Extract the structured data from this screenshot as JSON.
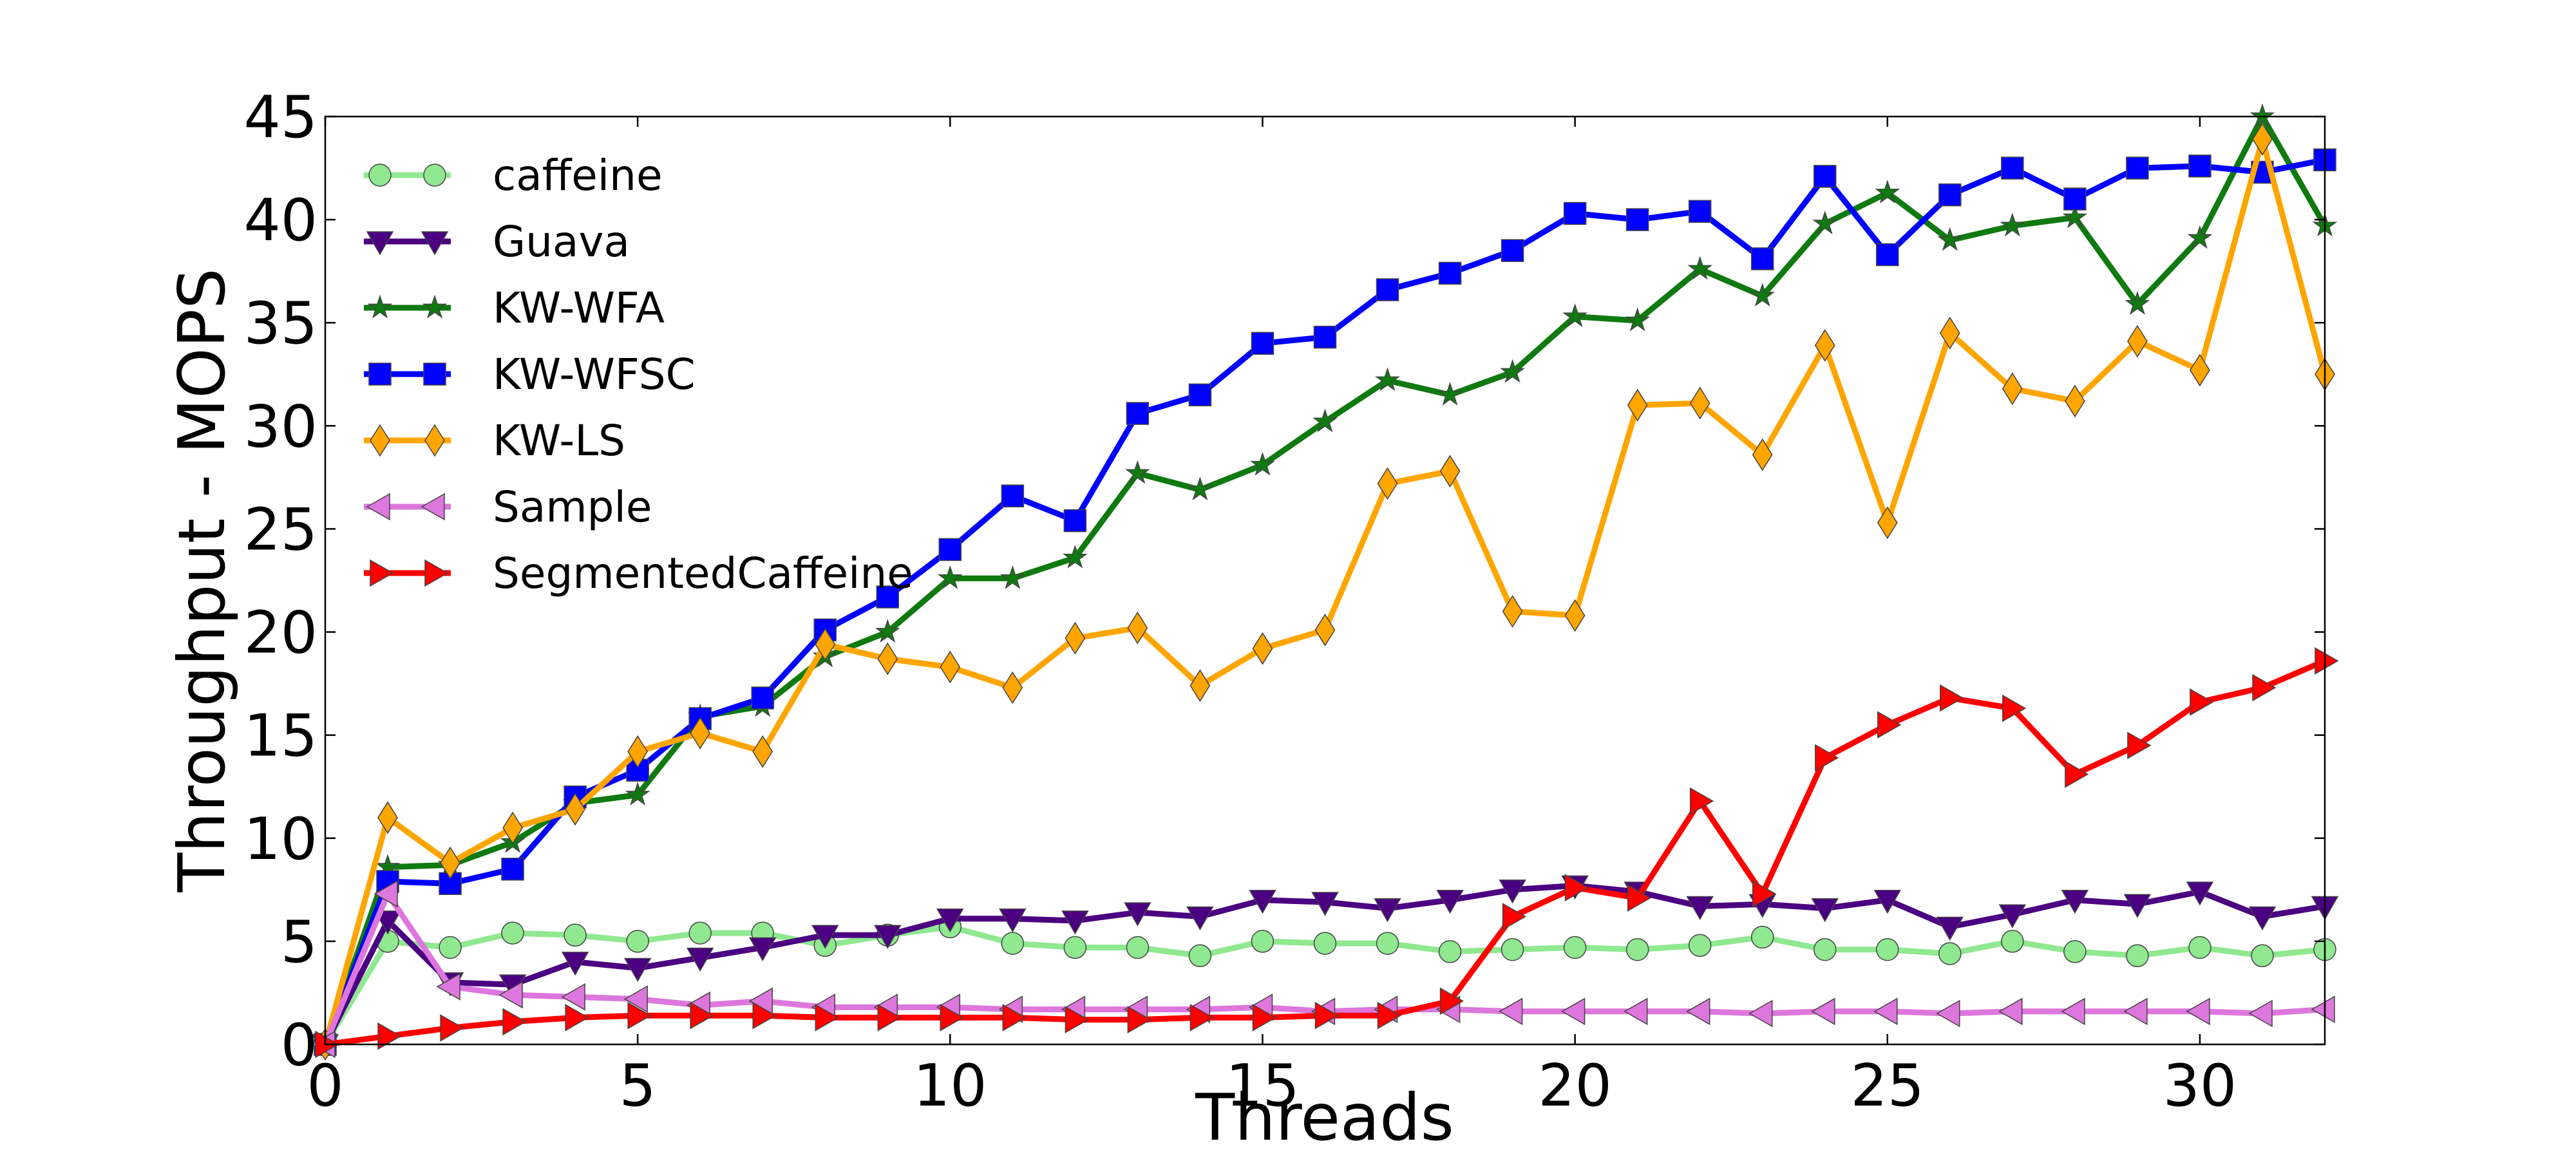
{
  "chart_data": {
    "type": "line",
    "xlabel": "Threads",
    "ylabel": "Throughput - MOPS",
    "xlim": [
      0,
      32
    ],
    "ylim": [
      0,
      45
    ],
    "xticks": [
      0,
      5,
      10,
      15,
      20,
      25,
      30
    ],
    "yticks": [
      0,
      5,
      10,
      15,
      20,
      25,
      30,
      35,
      40,
      45
    ],
    "grid": false,
    "legend_position": "top-left",
    "x": [
      0,
      1,
      2,
      3,
      4,
      5,
      6,
      7,
      8,
      9,
      10,
      11,
      12,
      13,
      14,
      15,
      16,
      17,
      18,
      19,
      20,
      21,
      22,
      23,
      24,
      25,
      26,
      27,
      28,
      29,
      30,
      31,
      32
    ],
    "series": [
      {
        "name": "caffeine",
        "color": "#90e890",
        "marker": "circle",
        "values": [
          0,
          5.0,
          4.7,
          5.4,
          5.3,
          5.0,
          5.4,
          5.4,
          4.8,
          5.3,
          5.7,
          4.9,
          4.7,
          4.7,
          4.3,
          5.0,
          4.9,
          4.9,
          4.5,
          4.6,
          4.7,
          4.6,
          4.8,
          5.2,
          4.6,
          4.6,
          4.4,
          5.0,
          4.5,
          4.3,
          4.7,
          4.3,
          4.6
        ]
      },
      {
        "name": "Guava",
        "color": "#4b0082",
        "marker": "triangle-down",
        "values": [
          0,
          6.0,
          3.0,
          2.9,
          4.0,
          3.7,
          4.2,
          4.7,
          5.3,
          5.3,
          6.1,
          6.1,
          6.0,
          6.4,
          6.2,
          7.0,
          6.9,
          6.6,
          7.0,
          7.5,
          7.7,
          7.4,
          6.7,
          6.8,
          6.6,
          7.0,
          5.7,
          6.3,
          7.0,
          6.8,
          7.4,
          6.2,
          6.7
        ]
      },
      {
        "name": "KW-WFA",
        "color": "#0f7a0f",
        "marker": "star",
        "values": [
          0,
          8.6,
          8.7,
          9.8,
          11.7,
          12.1,
          15.9,
          16.4,
          18.8,
          20.0,
          22.6,
          22.6,
          23.6,
          27.7,
          26.9,
          28.1,
          30.2,
          32.2,
          31.5,
          32.6,
          35.3,
          35.1,
          37.6,
          36.3,
          39.8,
          41.3,
          39.0,
          39.7,
          40.1,
          35.9,
          39.1,
          45.0,
          39.7
        ]
      },
      {
        "name": "KW-WFSC",
        "color": "#0000ff",
        "marker": "square",
        "values": [
          0,
          7.9,
          7.8,
          8.5,
          12.0,
          13.3,
          15.8,
          16.8,
          20.1,
          21.7,
          24.0,
          26.6,
          25.4,
          30.6,
          31.5,
          34.0,
          34.3,
          36.6,
          37.4,
          38.5,
          40.3,
          40.0,
          40.4,
          38.1,
          42.1,
          38.3,
          41.2,
          42.5,
          41.0,
          42.5,
          42.6,
          42.3,
          42.9
        ]
      },
      {
        "name": "KW-LS",
        "color": "#ffa500",
        "marker": "diamond",
        "values": [
          0,
          11.0,
          8.8,
          10.5,
          11.4,
          14.2,
          15.1,
          14.2,
          19.4,
          18.7,
          18.3,
          17.3,
          19.7,
          20.2,
          17.4,
          19.2,
          20.1,
          27.2,
          27.8,
          21.0,
          20.8,
          31.0,
          31.1,
          28.6,
          33.9,
          25.3,
          34.5,
          31.8,
          31.2,
          34.1,
          32.7,
          43.9,
          32.5
        ]
      },
      {
        "name": "Sample",
        "color": "#dd77dd",
        "marker": "triangle-left",
        "values": [
          0,
          7.3,
          2.8,
          2.4,
          2.3,
          2.2,
          1.9,
          2.1,
          1.8,
          1.8,
          1.8,
          1.7,
          1.7,
          1.7,
          1.7,
          1.8,
          1.6,
          1.7,
          1.7,
          1.6,
          1.6,
          1.6,
          1.6,
          1.5,
          1.6,
          1.6,
          1.5,
          1.6,
          1.6,
          1.6,
          1.6,
          1.5,
          1.7
        ]
      },
      {
        "name": "SegmentedCaffeine",
        "color": "#ff0000",
        "marker": "triangle-right",
        "values": [
          0,
          0.4,
          0.8,
          1.1,
          1.3,
          1.4,
          1.4,
          1.4,
          1.3,
          1.3,
          1.3,
          1.3,
          1.2,
          1.2,
          1.3,
          1.3,
          1.4,
          1.4,
          2.1,
          6.2,
          7.6,
          7.1,
          11.8,
          7.3,
          13.9,
          15.5,
          16.8,
          16.3,
          13.1,
          14.5,
          16.6,
          17.3,
          18.6
        ]
      }
    ]
  }
}
